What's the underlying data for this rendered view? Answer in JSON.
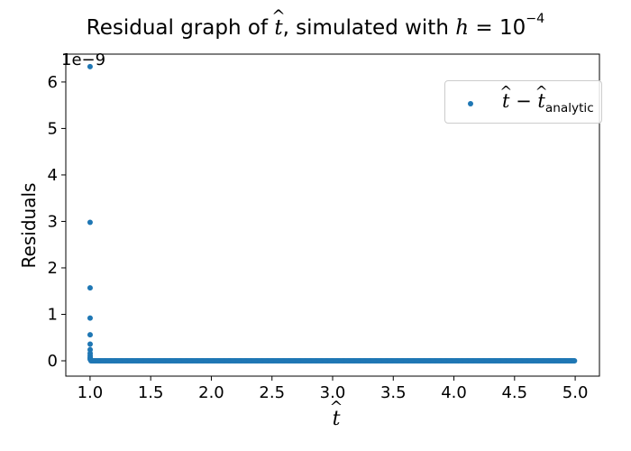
{
  "title": {
    "prefix": "Residual graph of ",
    "variable": "t",
    "middle": ", simulated with ",
    "h_symbol": "h",
    "equals": " = ",
    "base": "10",
    "exponent": "−4"
  },
  "axes": {
    "ylabel": "Residuals",
    "xlabel_variable": "t",
    "y_multiplier": "1e−9",
    "x_ticks": [
      "1.0",
      "1.5",
      "2.0",
      "2.5",
      "3.0",
      "3.5",
      "4.0",
      "4.5",
      "5.0"
    ],
    "y_ticks": [
      "0",
      "1",
      "2",
      "3",
      "4",
      "5",
      "6"
    ]
  },
  "legend": {
    "variable": "t",
    "minus": " − ",
    "subscript": "analytic",
    "marker_color": "#1f77b4"
  },
  "chart_data": {
    "type": "scatter",
    "title": "Residual graph of t̂, simulated with h = 10^-4",
    "xlabel": "t̂",
    "ylabel": "Residuals",
    "y_scale_factor": 1e-09,
    "xlim": [
      0.8,
      5.2
    ],
    "ylim": [
      -0.33,
      6.6
    ],
    "grid": false,
    "legend_position": "top-right",
    "series": [
      {
        "name": "t̂ − t̂_analytic",
        "color": "#1f77b4",
        "x_range": [
          1.0,
          5.0
        ],
        "points": [
          [
            1.0001,
            6.33
          ],
          [
            1.0002,
            2.98
          ],
          [
            1.0003,
            1.57
          ],
          [
            1.0004,
            0.92
          ],
          [
            1.0005,
            0.56
          ],
          [
            1.0006,
            0.36
          ],
          [
            1.0007,
            0.24
          ],
          [
            1.0008,
            0.16
          ],
          [
            1.0009,
            0.11
          ],
          [
            1.001,
            0.07
          ],
          [
            1.0011,
            0.05
          ],
          [
            1.0012,
            0.03
          ]
        ],
        "tail_value": 0.0
      }
    ]
  }
}
